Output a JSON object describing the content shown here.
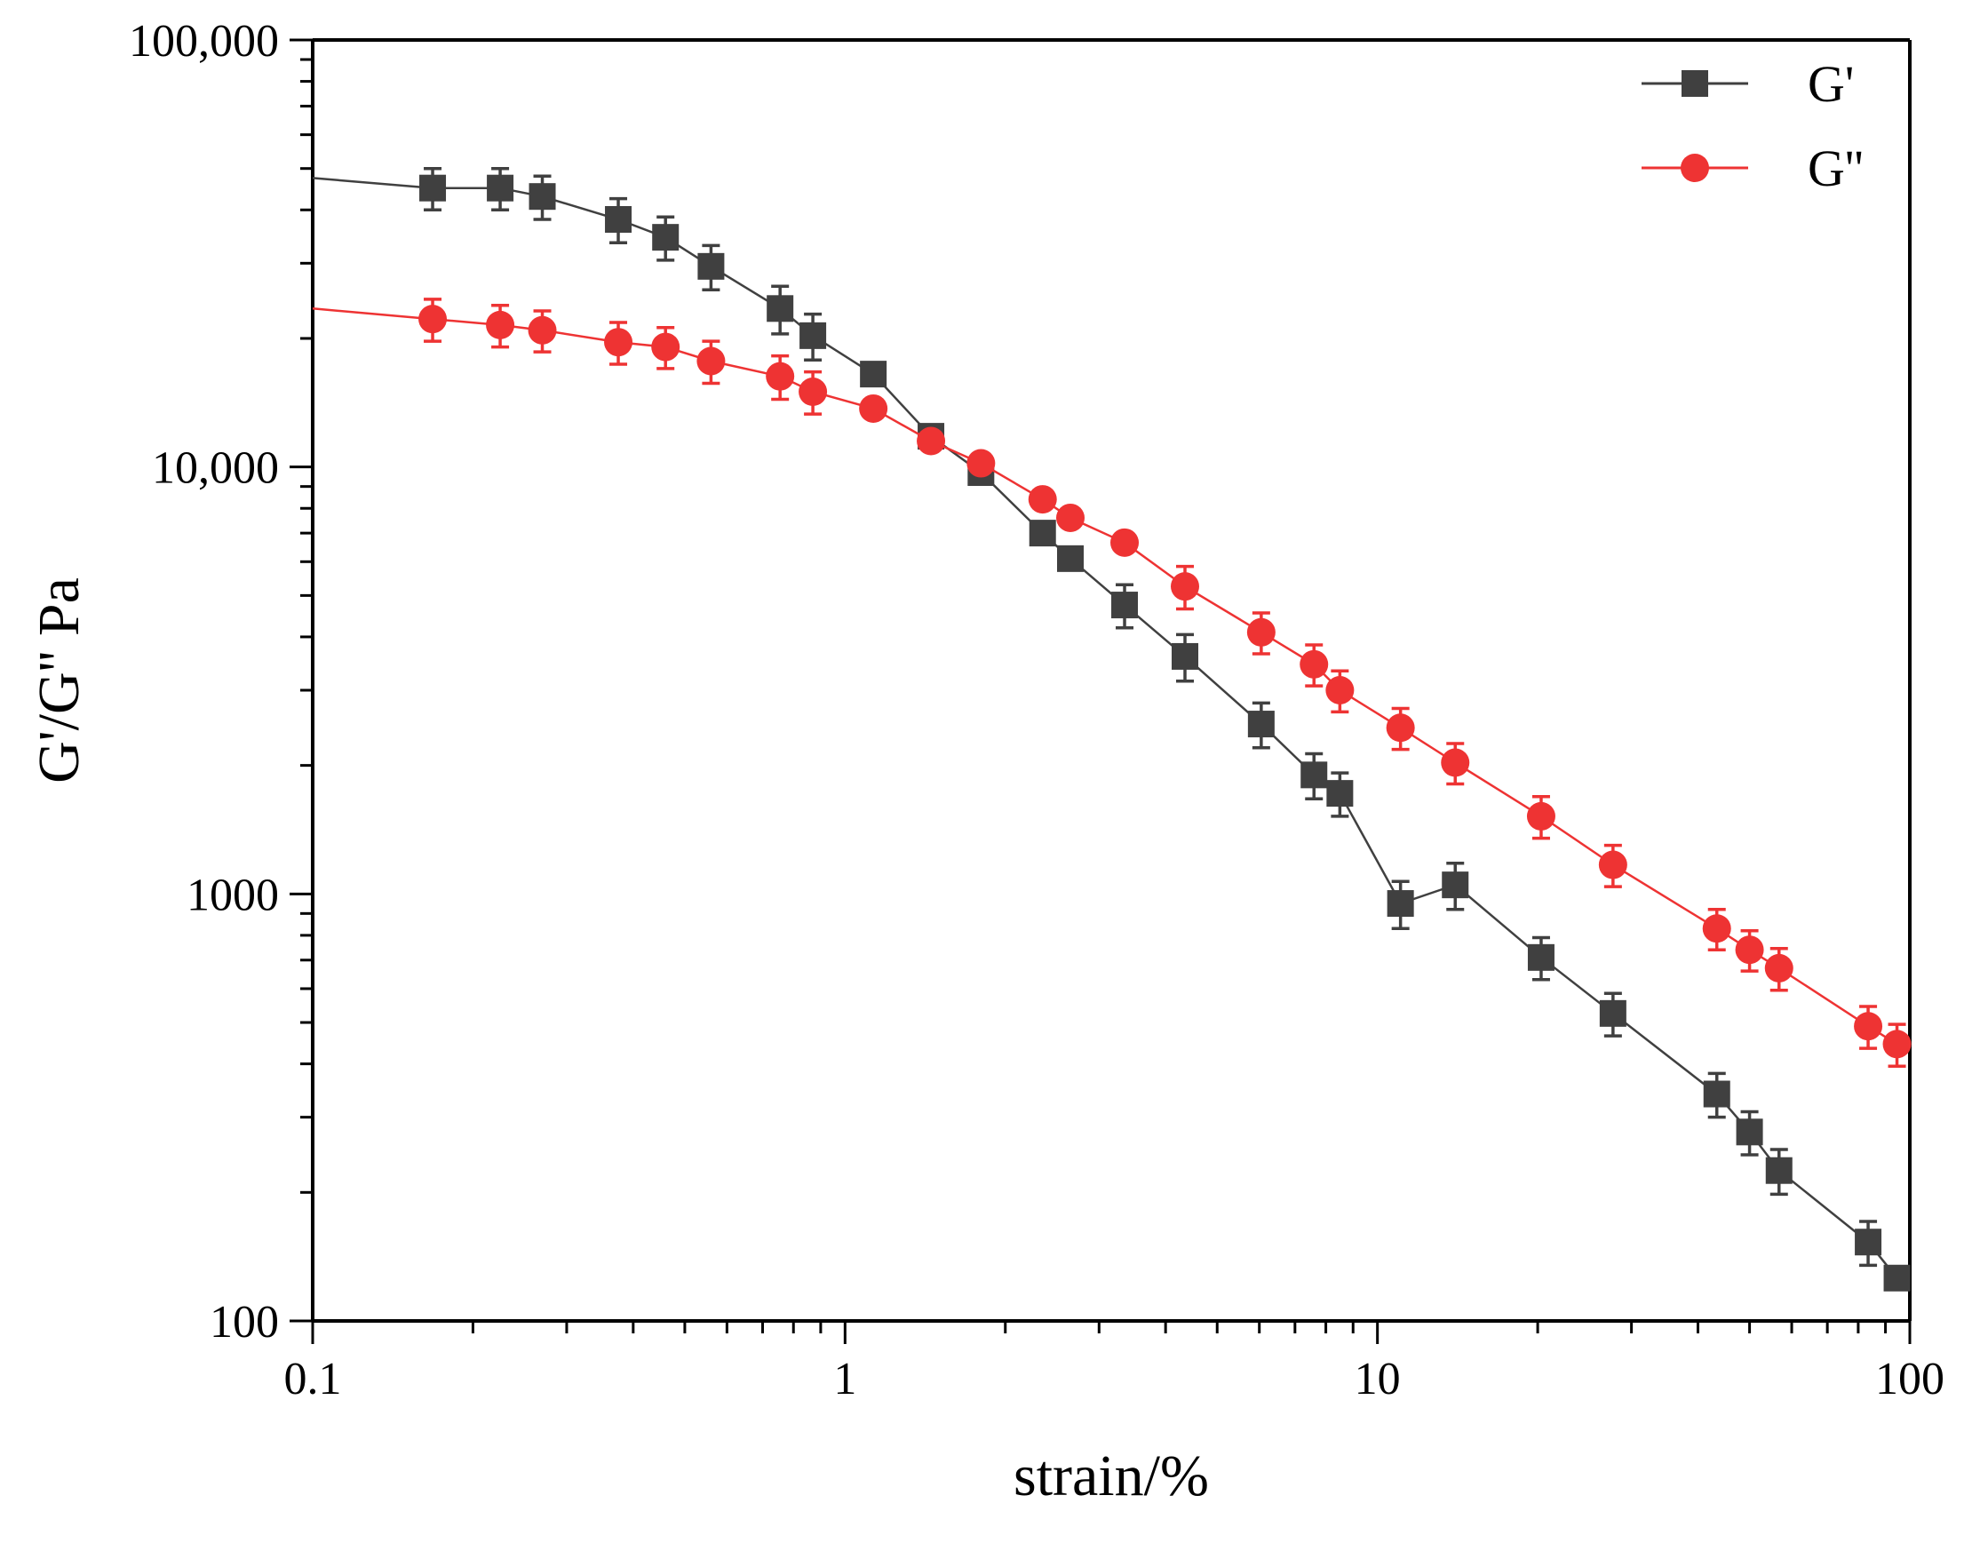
{
  "chart_data": {
    "type": "scatter",
    "title": "",
    "xlabel": "strain/%",
    "ylabel": "G'/G'' Pa",
    "x_scale": "log",
    "y_scale": "log",
    "xlim": [
      0.1,
      100
    ],
    "ylim": [
      100,
      100000
    ],
    "x_ticks": [
      {
        "value": 0.1,
        "label": "0.1"
      },
      {
        "value": 1,
        "label": "1"
      },
      {
        "value": 10,
        "label": "10"
      },
      {
        "value": 100,
        "label": "100"
      }
    ],
    "y_ticks": [
      {
        "value": 100,
        "label": "100"
      },
      {
        "value": 1000,
        "label": "1000"
      },
      {
        "value": 10000,
        "label": "10,000"
      },
      {
        "value": 100000,
        "label": "100,000"
      }
    ],
    "grid": false,
    "legend_position": "top-right",
    "series": [
      {
        "name": "G'",
        "color": "#404040",
        "marker": "square",
        "line_start": {
          "x": 0.1,
          "y": 47500
        },
        "points": [
          {
            "x": 0.168,
            "y": 45000,
            "err": 5000
          },
          {
            "x": 0.225,
            "y": 45000,
            "err": 5000
          },
          {
            "x": 0.27,
            "y": 43000,
            "err": 5000
          },
          {
            "x": 0.375,
            "y": 38000,
            "err": 4500
          },
          {
            "x": 0.46,
            "y": 34500,
            "err": 4000
          },
          {
            "x": 0.56,
            "y": 29500,
            "err": 3500
          },
          {
            "x": 0.755,
            "y": 23500,
            "err": 3000
          },
          {
            "x": 0.87,
            "y": 20300,
            "err": 2500
          },
          {
            "x": 1.13,
            "y": 16500,
            "err": 0
          },
          {
            "x": 1.45,
            "y": 11800,
            "err": 0
          },
          {
            "x": 1.8,
            "y": 9700,
            "err": 0
          },
          {
            "x": 2.35,
            "y": 7000,
            "err": 0
          },
          {
            "x": 2.65,
            "y": 6100,
            "err": 0
          },
          {
            "x": 3.35,
            "y": 4750,
            "err": 550
          },
          {
            "x": 4.35,
            "y": 3600,
            "err": 450
          },
          {
            "x": 6.05,
            "y": 2500,
            "err": 300
          },
          {
            "x": 7.6,
            "y": 1900,
            "err": 230
          },
          {
            "x": 8.5,
            "y": 1720,
            "err": 200
          },
          {
            "x": 11.05,
            "y": 950,
            "err": 120
          },
          {
            "x": 14.0,
            "y": 1050,
            "err": 130
          },
          {
            "x": 20.3,
            "y": 710,
            "err": 80
          },
          {
            "x": 27.7,
            "y": 525,
            "err": 60
          },
          {
            "x": 43.4,
            "y": 340,
            "err": 40
          },
          {
            "x": 50.0,
            "y": 277,
            "err": 32
          },
          {
            "x": 56.8,
            "y": 225,
            "err": 27
          },
          {
            "x": 83.5,
            "y": 153,
            "err": 18
          },
          {
            "x": 94.6,
            "y": 126,
            "err": 0
          }
        ]
      },
      {
        "name": "G''",
        "color": "#ee3333",
        "marker": "circle",
        "line_start": {
          "x": 0.1,
          "y": 23500
        },
        "points": [
          {
            "x": 0.168,
            "y": 22200,
            "err": 2500
          },
          {
            "x": 0.225,
            "y": 21500,
            "err": 2400
          },
          {
            "x": 0.27,
            "y": 20900,
            "err": 2300
          },
          {
            "x": 0.375,
            "y": 19600,
            "err": 2200
          },
          {
            "x": 0.46,
            "y": 19100,
            "err": 2100
          },
          {
            "x": 0.56,
            "y": 17700,
            "err": 2000
          },
          {
            "x": 0.755,
            "y": 16300,
            "err": 1900
          },
          {
            "x": 0.87,
            "y": 15000,
            "err": 1700
          },
          {
            "x": 1.13,
            "y": 13700,
            "err": 0
          },
          {
            "x": 1.45,
            "y": 11500,
            "err": 0
          },
          {
            "x": 1.8,
            "y": 10200,
            "err": 0
          },
          {
            "x": 2.35,
            "y": 8400,
            "err": 0
          },
          {
            "x": 2.65,
            "y": 7600,
            "err": 0
          },
          {
            "x": 3.35,
            "y": 6650,
            "err": 0
          },
          {
            "x": 4.35,
            "y": 5250,
            "err": 600
          },
          {
            "x": 6.05,
            "y": 4100,
            "err": 450
          },
          {
            "x": 7.6,
            "y": 3450,
            "err": 380
          },
          {
            "x": 8.5,
            "y": 3000,
            "err": 330
          },
          {
            "x": 11.05,
            "y": 2450,
            "err": 270
          },
          {
            "x": 14.0,
            "y": 2030,
            "err": 220
          },
          {
            "x": 20.3,
            "y": 1520,
            "err": 170
          },
          {
            "x": 27.7,
            "y": 1170,
            "err": 130
          },
          {
            "x": 43.4,
            "y": 830,
            "err": 90
          },
          {
            "x": 50.0,
            "y": 740,
            "err": 80
          },
          {
            "x": 56.8,
            "y": 670,
            "err": 75
          },
          {
            "x": 83.5,
            "y": 490,
            "err": 55
          },
          {
            "x": 94.6,
            "y": 445,
            "err": 50
          }
        ]
      }
    ]
  }
}
